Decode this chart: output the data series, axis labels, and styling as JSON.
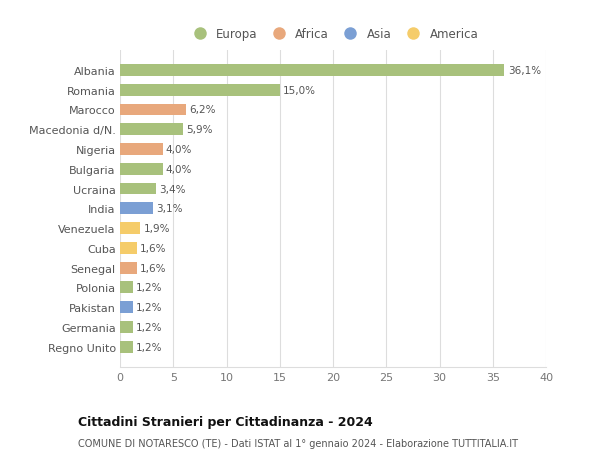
{
  "countries": [
    "Albania",
    "Romania",
    "Marocco",
    "Macedonia d/N.",
    "Nigeria",
    "Bulgaria",
    "Ucraina",
    "India",
    "Venezuela",
    "Cuba",
    "Senegal",
    "Polonia",
    "Pakistan",
    "Germania",
    "Regno Unito"
  ],
  "values": [
    36.1,
    15.0,
    6.2,
    5.9,
    4.0,
    4.0,
    3.4,
    3.1,
    1.9,
    1.6,
    1.6,
    1.2,
    1.2,
    1.2,
    1.2
  ],
  "labels": [
    "36,1%",
    "15,0%",
    "6,2%",
    "5,9%",
    "4,0%",
    "4,0%",
    "3,4%",
    "3,1%",
    "1,9%",
    "1,6%",
    "1,6%",
    "1,2%",
    "1,2%",
    "1,2%",
    "1,2%"
  ],
  "continents": [
    "Europa",
    "Europa",
    "Africa",
    "Europa",
    "Africa",
    "Europa",
    "Europa",
    "Asia",
    "America",
    "America",
    "Africa",
    "Europa",
    "Asia",
    "Europa",
    "Europa"
  ],
  "colors": {
    "Europa": "#a8c17c",
    "Africa": "#e8a87c",
    "Asia": "#7b9fd4",
    "America": "#f5cc6a"
  },
  "legend_order": [
    "Europa",
    "Africa",
    "Asia",
    "America"
  ],
  "title": "Cittadini Stranieri per Cittadinanza - 2024",
  "subtitle": "COMUNE DI NOTARESCO (TE) - Dati ISTAT al 1° gennaio 2024 - Elaborazione TUTTITALIA.IT",
  "xlim": [
    0,
    40
  ],
  "xticks": [
    0,
    5,
    10,
    15,
    20,
    25,
    30,
    35,
    40
  ],
  "background_color": "#ffffff",
  "grid_color": "#dddddd",
  "bar_height": 0.6
}
